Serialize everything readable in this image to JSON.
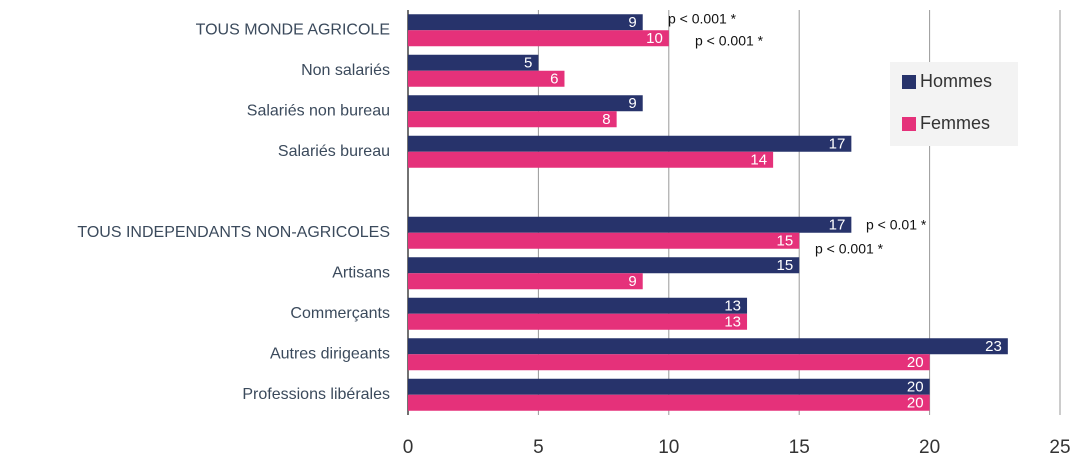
{
  "chart_data": {
    "type": "bar",
    "orientation": "horizontal",
    "categories": [
      "TOUS MONDE AGRICOLE",
      "Non salariés",
      "Salariés non bureau",
      "Salariés bureau",
      null,
      "TOUS INDEPENDANTS NON-AGRICOLES",
      "Artisans",
      "Commerçants",
      "Autres dirigeants",
      "Professions libérales"
    ],
    "series": [
      {
        "name": "Hommes",
        "color": "#27336b",
        "values": [
          9,
          5,
          9,
          17,
          null,
          17,
          15,
          13,
          23,
          20
        ]
      },
      {
        "name": "Femmes",
        "color": "#e5317a",
        "values": [
          10,
          6,
          8,
          14,
          null,
          15,
          9,
          13,
          20,
          20
        ]
      }
    ],
    "annotations": [
      "p < 0.001 *",
      "p < 0.001 *",
      "p < 0.01 *",
      "p < 0.001 *"
    ],
    "xlim": [
      0,
      25
    ],
    "xticks": [
      0,
      5,
      10,
      15,
      20,
      25
    ],
    "grid": true,
    "legend": "right"
  }
}
